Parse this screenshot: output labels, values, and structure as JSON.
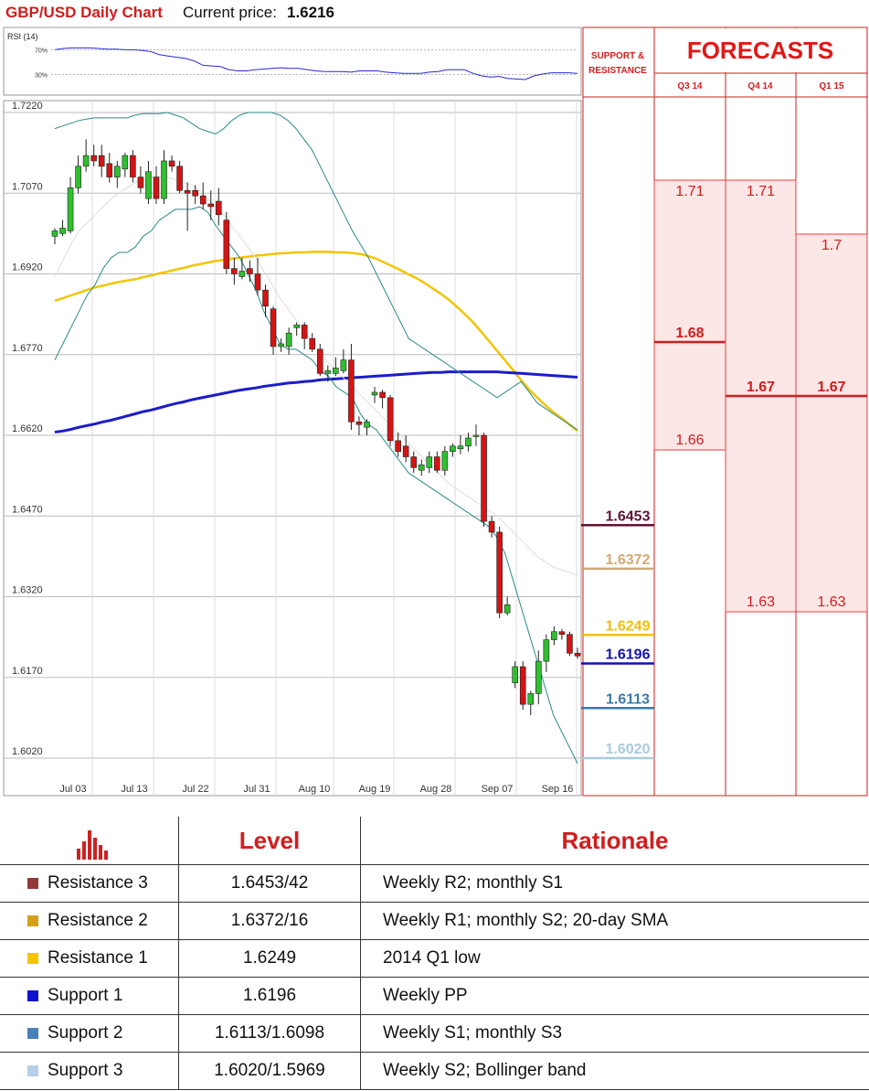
{
  "header": {
    "title": "GBP/USD Daily Chart",
    "current_label": "Current price:",
    "current_value": "1.6216"
  },
  "chart_data": {
    "type": "line",
    "price_axis": {
      "ticks": [
        "1.7220",
        "1.7070",
        "1.6920",
        "1.6770",
        "1.6620",
        "1.6470",
        "1.6320",
        "1.6170",
        "1.6020"
      ],
      "ylim": [
        1.599,
        1.722
      ]
    },
    "x_ticks": [
      "Jul 03",
      "Jul 13",
      "Jul 22",
      "Jul 31",
      "Aug 10",
      "Aug 19",
      "Aug 28",
      "Sep 07",
      "Sep 16"
    ],
    "rsi": {
      "label": "RSI (14)",
      "level_labels": [
        "70%",
        "30%"
      ],
      "levels": [
        70,
        30
      ],
      "values": [
        70,
        72,
        73,
        73,
        73,
        72,
        71,
        71,
        70,
        70,
        69,
        67,
        62,
        60,
        58,
        56,
        52,
        45,
        44,
        43,
        38,
        36,
        36,
        38,
        39,
        40,
        41,
        40,
        40,
        38,
        36,
        35,
        35,
        35,
        34,
        36,
        36,
        36,
        34,
        33,
        32,
        32,
        32,
        34,
        35,
        38,
        38,
        38,
        32,
        28,
        26,
        27,
        24,
        23,
        22,
        28,
        31,
        33,
        33,
        33,
        32
      ]
    },
    "candles": [
      {
        "o": 1.699,
        "h": 1.7005,
        "l": 1.6975,
        "c": 1.7
      },
      {
        "o": 1.6995,
        "h": 1.702,
        "l": 1.699,
        "c": 1.7005
      },
      {
        "o": 1.7,
        "h": 1.71,
        "l": 1.6995,
        "c": 1.708
      },
      {
        "o": 1.708,
        "h": 1.714,
        "l": 1.707,
        "c": 1.712
      },
      {
        "o": 1.712,
        "h": 1.717,
        "l": 1.711,
        "c": 1.714
      },
      {
        "o": 1.714,
        "h": 1.716,
        "l": 1.712,
        "c": 1.713
      },
      {
        "o": 1.714,
        "h": 1.716,
        "l": 1.71,
        "c": 1.712
      },
      {
        "o": 1.7125,
        "h": 1.7145,
        "l": 1.709,
        "c": 1.71
      },
      {
        "o": 1.71,
        "h": 1.713,
        "l": 1.708,
        "c": 1.712
      },
      {
        "o": 1.7115,
        "h": 1.7145,
        "l": 1.71,
        "c": 1.714
      },
      {
        "o": 1.714,
        "h": 1.715,
        "l": 1.709,
        "c": 1.71
      },
      {
        "o": 1.71,
        "h": 1.712,
        "l": 1.707,
        "c": 1.708
      },
      {
        "o": 1.706,
        "h": 1.713,
        "l": 1.705,
        "c": 1.711
      },
      {
        "o": 1.71,
        "h": 1.712,
        "l": 1.705,
        "c": 1.706
      },
      {
        "o": 1.706,
        "h": 1.715,
        "l": 1.705,
        "c": 1.713
      },
      {
        "o": 1.713,
        "h": 1.714,
        "l": 1.711,
        "c": 1.712
      },
      {
        "o": 1.712,
        "h": 1.713,
        "l": 1.707,
        "c": 1.7075
      },
      {
        "o": 1.7075,
        "h": 1.709,
        "l": 1.7,
        "c": 1.707
      },
      {
        "o": 1.7075,
        "h": 1.7085,
        "l": 1.705,
        "c": 1.7065
      },
      {
        "o": 1.7065,
        "h": 1.709,
        "l": 1.704,
        "c": 1.705
      },
      {
        "o": 1.705,
        "h": 1.7075,
        "l": 1.702,
        "c": 1.7045
      },
      {
        "o": 1.7055,
        "h": 1.708,
        "l": 1.701,
        "c": 1.703
      },
      {
        "o": 1.702,
        "h": 1.7035,
        "l": 1.692,
        "c": 1.693
      },
      {
        "o": 1.693,
        "h": 1.695,
        "l": 1.69,
        "c": 1.692
      },
      {
        "o": 1.6915,
        "h": 1.695,
        "l": 1.691,
        "c": 1.6925
      },
      {
        "o": 1.693,
        "h": 1.6945,
        "l": 1.6905,
        "c": 1.692
      },
      {
        "o": 1.692,
        "h": 1.695,
        "l": 1.688,
        "c": 1.689
      },
      {
        "o": 1.689,
        "h": 1.69,
        "l": 1.684,
        "c": 1.686
      },
      {
        "o": 1.6855,
        "h": 1.686,
        "l": 1.677,
        "c": 1.6785
      },
      {
        "o": 1.6785,
        "h": 1.68,
        "l": 1.6775,
        "c": 1.679
      },
      {
        "o": 1.6785,
        "h": 1.682,
        "l": 1.677,
        "c": 1.681
      },
      {
        "o": 1.682,
        "h": 1.683,
        "l": 1.6805,
        "c": 1.6825
      },
      {
        "o": 1.6825,
        "h": 1.683,
        "l": 1.678,
        "c": 1.68
      },
      {
        "o": 1.68,
        "h": 1.681,
        "l": 1.6775,
        "c": 1.678
      },
      {
        "o": 1.678,
        "h": 1.679,
        "l": 1.673,
        "c": 1.6735
      },
      {
        "o": 1.6735,
        "h": 1.675,
        "l": 1.672,
        "c": 1.674
      },
      {
        "o": 1.6735,
        "h": 1.6765,
        "l": 1.673,
        "c": 1.6745
      },
      {
        "o": 1.674,
        "h": 1.678,
        "l": 1.6735,
        "c": 1.676
      },
      {
        "o": 1.676,
        "h": 1.679,
        "l": 1.663,
        "c": 1.6645
      },
      {
        "o": 1.6645,
        "h": 1.6655,
        "l": 1.662,
        "c": 1.664
      },
      {
        "o": 1.6635,
        "h": 1.665,
        "l": 1.662,
        "c": 1.6645
      },
      {
        "o": 1.6695,
        "h": 1.671,
        "l": 1.668,
        "c": 1.67
      },
      {
        "o": 1.67,
        "h": 1.6705,
        "l": 1.667,
        "c": 1.669
      },
      {
        "o": 1.669,
        "h": 1.6695,
        "l": 1.66,
        "c": 1.661
      },
      {
        "o": 1.661,
        "h": 1.6625,
        "l": 1.658,
        "c": 1.659
      },
      {
        "o": 1.66,
        "h": 1.662,
        "l": 1.657,
        "c": 1.658
      },
      {
        "o": 1.658,
        "h": 1.659,
        "l": 1.655,
        "c": 1.656
      },
      {
        "o": 1.6555,
        "h": 1.6575,
        "l": 1.6545,
        "c": 1.6565
      },
      {
        "o": 1.656,
        "h": 1.659,
        "l": 1.655,
        "c": 1.658
      },
      {
        "o": 1.658,
        "h": 1.659,
        "l": 1.655,
        "c": 1.6555
      },
      {
        "o": 1.6555,
        "h": 1.66,
        "l": 1.6545,
        "c": 1.659
      },
      {
        "o": 1.659,
        "h": 1.6605,
        "l": 1.658,
        "c": 1.66
      },
      {
        "o": 1.6595,
        "h": 1.662,
        "l": 1.6585,
        "c": 1.66
      },
      {
        "o": 1.66,
        "h": 1.6625,
        "l": 1.659,
        "c": 1.6615
      },
      {
        "o": 1.662,
        "h": 1.664,
        "l": 1.66,
        "c": 1.662
      },
      {
        "o": 1.662,
        "h": 1.6625,
        "l": 1.645,
        "c": 1.646
      },
      {
        "o": 1.646,
        "h": 1.647,
        "l": 1.643,
        "c": 1.644
      },
      {
        "o": 1.644,
        "h": 1.645,
        "l": 1.628,
        "c": 1.629
      },
      {
        "o": 1.629,
        "h": 1.632,
        "l": 1.6285,
        "c": 1.6305
      },
      {
        "o": 1.616,
        "h": 1.62,
        "l": 1.615,
        "c": 1.619
      },
      {
        "o": 1.619,
        "h": 1.62,
        "l": 1.611,
        "c": 1.612
      },
      {
        "o": 1.612,
        "h": 1.6145,
        "l": 1.61,
        "c": 1.614
      },
      {
        "o": 1.614,
        "h": 1.622,
        "l": 1.612,
        "c": 1.62
      },
      {
        "o": 1.62,
        "h": 1.625,
        "l": 1.618,
        "c": 1.624
      },
      {
        "o": 1.624,
        "h": 1.6265,
        "l": 1.623,
        "c": 1.6255
      },
      {
        "o": 1.6255,
        "h": 1.626,
        "l": 1.624,
        "c": 1.625
      },
      {
        "o": 1.625,
        "h": 1.6255,
        "l": 1.621,
        "c": 1.6215
      },
      {
        "o": 1.6215,
        "h": 1.6225,
        "l": 1.6205,
        "c": 1.621
      }
    ],
    "series": [
      {
        "color": "#f5c400",
        "values": [
          1.687,
          1.6875,
          1.688,
          1.6885,
          1.689,
          1.6895,
          1.6898,
          1.6902,
          1.6905,
          1.6908,
          1.691,
          1.6914,
          1.6917,
          1.6921,
          1.6924,
          1.6928,
          1.6931,
          1.6935,
          1.6938,
          1.6941,
          1.6944,
          1.6946,
          1.6948,
          1.695,
          1.6952,
          1.6954,
          1.6955,
          1.6957,
          1.6958,
          1.6959,
          1.696,
          1.696,
          1.6961,
          1.6961,
          1.6961,
          1.696,
          1.696,
          1.6959,
          1.6957,
          1.6953,
          1.6948,
          1.6941,
          1.6934,
          1.6927,
          1.6919,
          1.6912,
          1.6903,
          1.6893,
          1.6883,
          1.6872,
          1.6859,
          1.6845,
          1.683,
          1.6813,
          1.6795,
          1.6777,
          1.6759,
          1.6741,
          1.6722,
          1.6705,
          1.669,
          1.6676,
          1.6663,
          1.6652,
          1.664,
          1.6628
        ]
      },
      {
        "color": "#1c1ccc",
        "values": [
          1.6626,
          1.6628,
          1.6631,
          1.6635,
          1.6638,
          1.6641,
          1.6645,
          1.6648,
          1.6652,
          1.6656,
          1.666,
          1.6664,
          1.6667,
          1.6671,
          1.6675,
          1.6679,
          1.6682,
          1.6686,
          1.6689,
          1.6692,
          1.6695,
          1.6698,
          1.6701,
          1.6704,
          1.6706,
          1.6708,
          1.6711,
          1.6713,
          1.6715,
          1.6717,
          1.6718,
          1.672,
          1.6721,
          1.6723,
          1.6724,
          1.6725,
          1.6726,
          1.6727,
          1.6728,
          1.6729,
          1.673,
          1.6731,
          1.6732,
          1.6733,
          1.6734,
          1.6735,
          1.6736,
          1.6737,
          1.6737,
          1.6738,
          1.6738,
          1.6738,
          1.6738,
          1.6738,
          1.6738,
          1.6738,
          1.6737,
          1.6736,
          1.6735,
          1.6734,
          1.6733,
          1.6732,
          1.6731,
          1.673,
          1.6729,
          1.6728
        ]
      },
      {
        "color": "#2a8a86",
        "values": [
          1.719,
          1.7195,
          1.72,
          1.7205,
          1.7208,
          1.721,
          1.721,
          1.721,
          1.721,
          1.721,
          1.7215,
          1.7218,
          1.7218,
          1.7218,
          1.722,
          1.7215,
          1.721,
          1.72,
          1.719,
          1.7185,
          1.718,
          1.719,
          1.7205,
          1.7215,
          1.722,
          1.722,
          1.722,
          1.722,
          1.7215,
          1.7205,
          1.719,
          1.717,
          1.715,
          1.712,
          1.709,
          1.706,
          1.703,
          1.7,
          1.6975,
          1.695,
          1.692,
          1.689,
          1.686,
          1.683,
          1.68,
          1.679,
          1.678,
          1.677,
          1.676,
          1.675,
          1.674,
          1.673,
          1.672,
          1.671,
          1.67,
          1.669,
          1.67,
          1.671,
          1.672,
          1.67,
          1.668,
          1.667,
          1.666,
          1.665,
          1.664,
          1.663
        ]
      },
      {
        "color": "#2a8a86",
        "values": [
          1.676,
          1.679,
          1.682,
          1.685,
          1.688,
          1.69,
          1.693,
          1.695,
          1.696,
          1.696,
          1.697,
          1.699,
          1.7,
          1.702,
          1.703,
          1.704,
          1.704,
          1.704,
          1.7045,
          1.7035,
          1.701,
          1.699,
          1.697,
          1.695,
          1.692,
          1.689,
          1.685,
          1.682,
          1.679,
          1.678,
          1.678,
          1.677,
          1.676,
          1.674,
          1.673,
          1.671,
          1.67,
          1.669,
          1.666,
          1.664,
          1.663,
          1.661,
          1.659,
          1.657,
          1.655,
          1.654,
          1.653,
          1.652,
          1.651,
          1.65,
          1.649,
          1.648,
          1.647,
          1.646,
          1.645,
          1.643,
          1.64,
          1.635,
          1.63,
          1.625,
          1.62,
          1.615,
          1.61,
          1.607,
          1.604,
          1.601
        ]
      },
      {
        "color": "#dddddd",
        "values": [
          1.6915,
          1.6945,
          1.6975,
          1.7,
          1.7015,
          1.703,
          1.7045,
          1.706,
          1.707,
          1.708,
          1.709,
          1.7095,
          1.71,
          1.71,
          1.71,
          1.7095,
          1.709,
          1.7085,
          1.7075,
          1.706,
          1.7045,
          1.703,
          1.701,
          1.699,
          1.697,
          1.695,
          1.6925,
          1.69,
          1.6875,
          1.6855,
          1.6835,
          1.6815,
          1.6795,
          1.6775,
          1.6755,
          1.674,
          1.6725,
          1.671,
          1.6695,
          1.668,
          1.6665,
          1.665,
          1.6635,
          1.662,
          1.6605,
          1.659,
          1.6575,
          1.656,
          1.6545,
          1.653,
          1.652,
          1.651,
          1.65,
          1.649,
          1.648,
          1.647,
          1.6455,
          1.644,
          1.6425,
          1.641,
          1.6395,
          1.6385,
          1.6375,
          1.637,
          1.6365,
          1.636
        ]
      }
    ],
    "levels": [
      {
        "value": 1.6453,
        "label": "1.6453",
        "color": "#5e1433"
      },
      {
        "value": 1.6372,
        "label": "1.6372",
        "color": "#d1a974"
      },
      {
        "value": 1.6249,
        "label": "1.6249",
        "color": "#f2c100"
      },
      {
        "value": 1.6196,
        "label": "1.6196",
        "color": "#1212b0"
      },
      {
        "value": 1.6113,
        "label": "1.6113",
        "color": "#3a78a8"
      },
      {
        "value": 1.602,
        "label": "1.6020",
        "color": "#a9cbdc"
      }
    ]
  },
  "forecast": {
    "sr_header": "SUPPORT & RESISTANCE",
    "title": "FORECASTS",
    "columns": [
      "Q3 14",
      "Q4 14",
      "Q1 15"
    ],
    "q3": {
      "high": "1.71",
      "mid": "1.68",
      "low": "1.66"
    },
    "q4": {
      "high": "1.71",
      "mid": "1.67",
      "low": "1.63"
    },
    "q1": {
      "high": "1.7",
      "mid": "1.67",
      "low": "1.63"
    }
  },
  "table": {
    "headers": {
      "level": "Level",
      "rationale": "Rationale"
    },
    "rows": [
      {
        "name": "Resistance 3",
        "level": "1.6453/42",
        "rationale": "Weekly R2; monthly S1",
        "color": "#933838"
      },
      {
        "name": "Resistance 2",
        "level": "1.6372/16",
        "rationale": "Weekly R1; monthly S2; 20-day SMA",
        "color": "#d4a017"
      },
      {
        "name": "Resistance 1",
        "level": "1.6249",
        "rationale": "2014 Q1 low",
        "color": "#f5c400"
      },
      {
        "name": "Support 1",
        "level": "1.6196",
        "rationale": "Weekly PP",
        "color": "#1010d0"
      },
      {
        "name": "Support 2",
        "level": "1.6113/1.6098",
        "rationale": "Weekly S1; monthly S3",
        "color": "#4a80b8"
      },
      {
        "name": "Support 3",
        "level": "1.6020/1.5969",
        "rationale": "Weekly S2; Bollinger band",
        "color": "#b8cde6"
      }
    ]
  }
}
